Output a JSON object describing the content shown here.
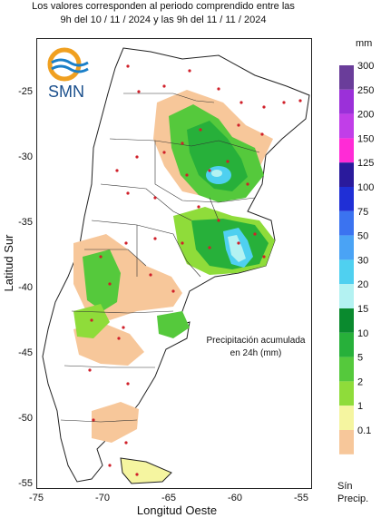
{
  "header": {
    "line1": "Los valores corresponden al periodo comprendido entre las",
    "line2": "9h del 10 / 11 / 2024  y las 9h del 11 / 11 / 2024"
  },
  "logo": {
    "text": "SMN"
  },
  "axes": {
    "xlabel": "Longitud Oeste",
    "ylabel": "Latitud Sur",
    "x_ticks": [
      "-75",
      "-70",
      "-65",
      "-60",
      "-55"
    ],
    "y_ticks": [
      "-25",
      "-30",
      "-35",
      "-40",
      "-45",
      "-50",
      "-55"
    ]
  },
  "map_note": {
    "line1": "Precipitación acumulada",
    "line2": "en 24h (mm)"
  },
  "legend": {
    "unit": "mm",
    "levels": [
      {
        "label": "300",
        "color": "#6a3d9a"
      },
      {
        "label": "250",
        "color": "#9b30d9"
      },
      {
        "label": "200",
        "color": "#c13ee8"
      },
      {
        "label": "150",
        "color": "#ff2bd6"
      },
      {
        "label": "125",
        "color": "#2a1a9c"
      },
      {
        "label": "100",
        "color": "#1f2fd6"
      },
      {
        "label": "75",
        "color": "#3b73f0"
      },
      {
        "label": "50",
        "color": "#4aa3f5"
      },
      {
        "label": "30",
        "color": "#4fd0f0"
      },
      {
        "label": "20",
        "color": "#b3f2f2"
      },
      {
        "label": "15",
        "color": "#0a8a2e"
      },
      {
        "label": "10",
        "color": "#27b03a"
      },
      {
        "label": "5",
        "color": "#55c93c"
      },
      {
        "label": "2",
        "color": "#8fdc3a"
      },
      {
        "label": "1",
        "color": "#f5f5a0"
      },
      {
        "label": "0.1",
        "color": "#f7c79a"
      }
    ],
    "no_precip_line1": "Sín",
    "no_precip_line2": "Precip."
  }
}
